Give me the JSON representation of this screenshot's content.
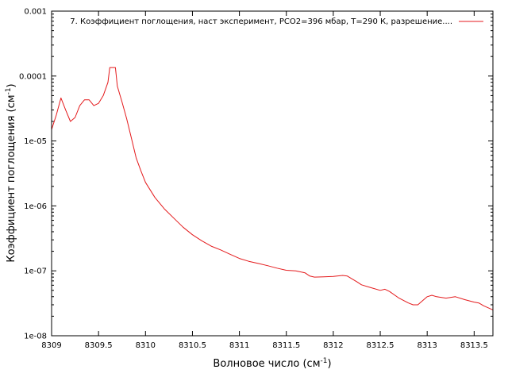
{
  "chart_data": {
    "type": "line",
    "xlabel": "Волновое число (см",
    "xlabel_sup": "-1",
    "xlabel_tail": ")",
    "ylabel": "Коэффициент поглощения (см",
    "ylabel_sup": "-1",
    "ylabel_tail": ")",
    "xlim": [
      8309,
      8313.7
    ],
    "ylim": [
      1e-08,
      0.001
    ],
    "y_scale": "log",
    "grid": false,
    "legend_position": "top-right",
    "x_ticks": [
      8309,
      8309.5,
      8310,
      8310.5,
      8311,
      8311.5,
      8312,
      8312.5,
      8313,
      8313.5
    ],
    "x_tick_labels": [
      "8309",
      "8309.5",
      "8310",
      "8310.5",
      "8311",
      "8311.5",
      "8312",
      "8312.5",
      "8313",
      "8313.5"
    ],
    "y_ticks": [
      1e-08,
      1e-07,
      1e-06,
      1e-05,
      0.0001,
      0.001
    ],
    "y_tick_labels": [
      "1e-08",
      "1e-07",
      "1e-06",
      "1e-05",
      "0.0001",
      "0.001"
    ],
    "series": [
      {
        "name": "7. Коэффициент поглощения, наст эксперимент, PCO2=396 мбар, T=290 К, разрешение....",
        "color": "#e41a1c",
        "x": [
          8309,
          8309.05,
          8309.1,
          8309.15,
          8309.2,
          8309.25,
          8309.3,
          8309.35,
          8309.4,
          8309.45,
          8309.5,
          8309.55,
          8309.6,
          8309.62,
          8309.63,
          8309.68,
          8309.7,
          8309.75,
          8309.8,
          8309.85,
          8309.9,
          8309.95,
          8310,
          8310.1,
          8310.2,
          8310.3,
          8310.4,
          8310.5,
          8310.6,
          8310.7,
          8310.8,
          8310.9,
          8311,
          8311.1,
          8311.2,
          8311.3,
          8311.4,
          8311.5,
          8311.6,
          8311.7,
          8311.75,
          8311.8,
          8311.9,
          8312,
          8312.1,
          8312.15,
          8312.2,
          8312.25,
          8312.3,
          8312.4,
          8312.5,
          8312.55,
          8312.6,
          8312.7,
          8312.8,
          8312.85,
          8312.9,
          8313,
          8313.05,
          8313.1,
          8313.2,
          8313.3,
          8313.4,
          8313.5,
          8313.55,
          8313.6,
          8313.7
        ],
        "y": [
          1.5e-05,
          2.5e-05,
          4.6e-05,
          3e-05,
          2e-05,
          2.3e-05,
          3.5e-05,
          4.3e-05,
          4.3e-05,
          3.5e-05,
          3.8e-05,
          5e-05,
          8e-05,
          0.000135,
          0.000135,
          0.000135,
          7e-05,
          4e-05,
          2.2e-05,
          1.1e-05,
          5.5e-06,
          3.5e-06,
          2.3e-06,
          1.35e-06,
          9e-07,
          6.5e-07,
          4.7e-07,
          3.6e-07,
          2.9e-07,
          2.4e-07,
          2.1e-07,
          1.8e-07,
          1.55e-07,
          1.4e-07,
          1.3e-07,
          1.2e-07,
          1.1e-07,
          1.02e-07,
          1e-07,
          9.3e-08,
          8.3e-08,
          8e-08,
          8.1e-08,
          8.2e-08,
          8.5e-08,
          8.3e-08,
          7.5e-08,
          6.8e-08,
          6.1e-08,
          5.5e-08,
          5e-08,
          5.2e-08,
          4.8e-08,
          3.8e-08,
          3.2e-08,
          3e-08,
          3e-08,
          4e-08,
          4.2e-08,
          4e-08,
          3.8e-08,
          4e-08,
          3.6e-08,
          3.3e-08,
          3.2e-08,
          2.9e-08,
          2.5e-08
        ]
      }
    ]
  }
}
